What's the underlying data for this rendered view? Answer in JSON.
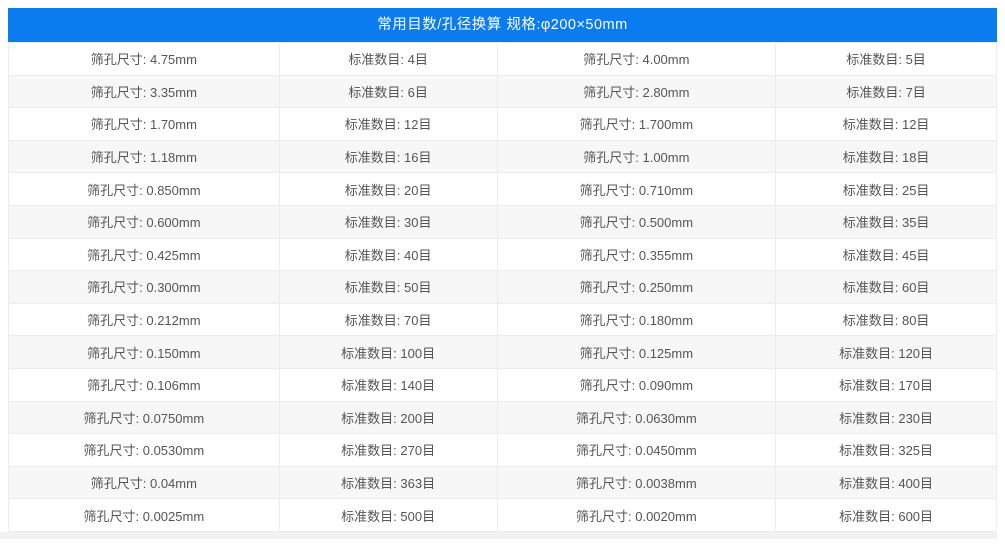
{
  "colors": {
    "header_bg": "#0b7bf0",
    "header_text": "#ffffff",
    "row_alt": "#f7f7f7",
    "border": "#ececec",
    "cell_text": "#555555"
  },
  "header": {
    "title": "常用目数/孔径换算 规格:φ200×50mm"
  },
  "table": {
    "column_labels": [
      "筛孔尺寸",
      "标准数目",
      "筛孔尺寸",
      "标准数目"
    ],
    "rows": [
      [
        "筛孔尺寸: 4.75mm",
        "标准数目: 4目",
        "筛孔尺寸: 4.00mm",
        "标准数目: 5目"
      ],
      [
        "筛孔尺寸: 3.35mm",
        "标准数目: 6目",
        "筛孔尺寸: 2.80mm",
        "标准数目: 7目"
      ],
      [
        "筛孔尺寸: 1.70mm",
        "标准数目: 12目",
        "筛孔尺寸: 1.700mm",
        "标准数目: 12目"
      ],
      [
        "筛孔尺寸: 1.18mm",
        "标准数目: 16目",
        "筛孔尺寸: 1.00mm",
        "标准数目: 18目"
      ],
      [
        "筛孔尺寸: 0.850mm",
        "标准数目: 20目",
        "筛孔尺寸: 0.710mm",
        "标准数目: 25目"
      ],
      [
        "筛孔尺寸: 0.600mm",
        "标准数目: 30目",
        "筛孔尺寸: 0.500mm",
        "标准数目: 35目"
      ],
      [
        "筛孔尺寸: 0.425mm",
        "标准数目: 40目",
        "筛孔尺寸: 0.355mm",
        "标准数目: 45目"
      ],
      [
        "筛孔尺寸: 0.300mm",
        "标准数目: 50目",
        "筛孔尺寸: 0.250mm",
        "标准数目: 60目"
      ],
      [
        "筛孔尺寸: 0.212mm",
        "标准数目: 70目",
        "筛孔尺寸: 0.180mm",
        "标准数目: 80目"
      ],
      [
        "筛孔尺寸: 0.150mm",
        "标准数目: 100目",
        "筛孔尺寸: 0.125mm",
        "标准数目: 120目"
      ],
      [
        "筛孔尺寸: 0.106mm",
        "标准数目: 140目",
        "筛孔尺寸: 0.090mm",
        "标准数目: 170目"
      ],
      [
        "筛孔尺寸: 0.0750mm",
        "标准数目: 200目",
        "筛孔尺寸: 0.0630mm",
        "标准数目: 230目"
      ],
      [
        "筛孔尺寸: 0.0530mm",
        "标准数目: 270目",
        "筛孔尺寸: 0.0450mm",
        "标准数目: 325目"
      ],
      [
        "筛孔尺寸: 0.04mm",
        "标准数目: 363目",
        "筛孔尺寸: 0.0038mm",
        "标准数目: 400目"
      ],
      [
        "筛孔尺寸: 0.0025mm",
        "标准数目: 500目",
        "筛孔尺寸: 0.0020mm",
        "标准数目: 600目"
      ]
    ]
  }
}
